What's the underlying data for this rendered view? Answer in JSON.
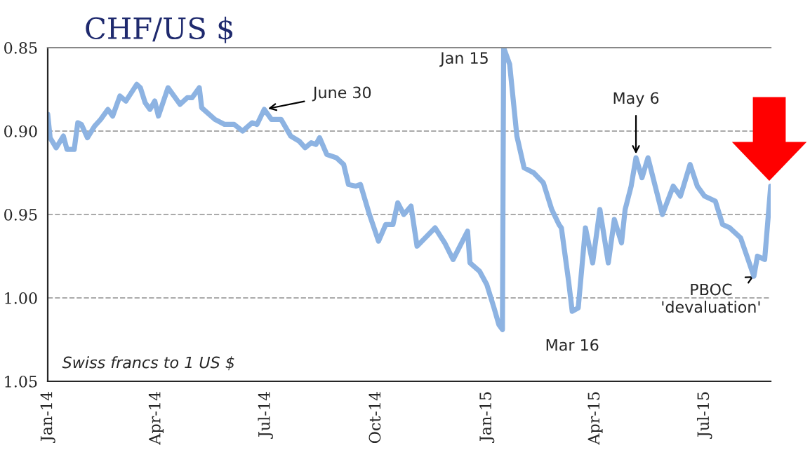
{
  "chart_data": {
    "type": "line",
    "title": "CHF/US $",
    "x": [
      "2014-01-01",
      "2014-01-03",
      "2014-01-08",
      "2014-01-14",
      "2014-01-17",
      "2014-01-23",
      "2014-01-26",
      "2014-01-29",
      "2014-02-03",
      "2014-02-09",
      "2014-02-14",
      "2014-02-20",
      "2014-02-24",
      "2014-03-02",
      "2014-03-07",
      "2014-03-16",
      "2014-03-19",
      "2014-03-23",
      "2014-03-27",
      "2014-03-31",
      "2014-04-03",
      "2014-04-11",
      "2014-04-17",
      "2014-04-21",
      "2014-04-27",
      "2014-05-01",
      "2014-05-07",
      "2014-05-09",
      "2014-05-20",
      "2014-05-28",
      "2014-06-05",
      "2014-06-12",
      "2014-06-20",
      "2014-06-24",
      "2014-06-30",
      "2014-07-06",
      "2014-07-14",
      "2014-07-22",
      "2014-07-29",
      "2014-08-03",
      "2014-08-08",
      "2014-08-12",
      "2014-08-15",
      "2014-08-21",
      "2014-08-29",
      "2014-09-04",
      "2014-09-08",
      "2014-09-14",
      "2014-09-18",
      "2014-09-25",
      "2014-10-03",
      "2014-10-09",
      "2014-10-15",
      "2014-10-19",
      "2014-10-24",
      "2014-10-30",
      "2014-11-04",
      "2014-11-19",
      "2014-11-27",
      "2014-12-04",
      "2014-12-16",
      "2014-12-18",
      "2014-12-26",
      "2015-01-01",
      "2015-01-07",
      "2015-01-11",
      "2015-01-14",
      "2015-01-15",
      "2015-01-20",
      "2015-01-26",
      "2015-02-01",
      "2015-02-09",
      "2015-02-17",
      "2015-02-24",
      "2015-03-02",
      "2015-03-04",
      "2015-03-10",
      "2015-03-13",
      "2015-03-18",
      "2015-03-24",
      "2015-03-30",
      "2015-04-05",
      "2015-04-12",
      "2015-04-17",
      "2015-04-23",
      "2015-04-26",
      "2015-05-01",
      "2015-05-05",
      "2015-05-10",
      "2015-05-15",
      "2015-05-21",
      "2015-05-27",
      "2015-06-05",
      "2015-06-11",
      "2015-06-19",
      "2015-06-25",
      "2015-07-01",
      "2015-07-10",
      "2015-07-16",
      "2015-07-22",
      "2015-07-31",
      "2015-08-11",
      "2015-08-14",
      "2015-08-20",
      "2015-08-25"
    ],
    "series": [
      {
        "color": "#8db3e2",
        "values": [
          0.89,
          0.904,
          0.91,
          0.903,
          0.911,
          0.911,
          0.895,
          0.896,
          0.904,
          0.897,
          0.893,
          0.887,
          0.891,
          0.879,
          0.882,
          0.872,
          0.874,
          0.883,
          0.887,
          0.882,
          0.891,
          0.874,
          0.88,
          0.884,
          0.88,
          0.88,
          0.874,
          0.886,
          0.893,
          0.896,
          0.896,
          0.9,
          0.895,
          0.896,
          0.887,
          0.893,
          0.893,
          0.903,
          0.906,
          0.91,
          0.907,
          0.908,
          0.904,
          0.914,
          0.916,
          0.92,
          0.932,
          0.933,
          0.932,
          0.949,
          0.966,
          0.956,
          0.956,
          0.943,
          0.95,
          0.945,
          0.969,
          0.958,
          0.967,
          0.977,
          0.96,
          0.979,
          0.984,
          0.992,
          1.006,
          1.016,
          1.019,
          0.85,
          0.86,
          0.903,
          0.922,
          0.925,
          0.931,
          0.947,
          0.956,
          0.958,
          0.99,
          1.008,
          1.006,
          0.958,
          0.979,
          0.947,
          0.979,
          0.953,
          0.967,
          0.947,
          0.933,
          0.916,
          0.928,
          0.916,
          0.933,
          0.95,
          0.933,
          0.939,
          0.92,
          0.933,
          0.939,
          0.942,
          0.956,
          0.958,
          0.964,
          0.987,
          0.975,
          0.977,
          0.933
        ]
      }
    ],
    "xlim": [
      "2014-01-01",
      "2015-08-25"
    ],
    "xticks": [
      {
        "value": "2014-01-01",
        "label": "Jan-14"
      },
      {
        "value": "2014-04-01",
        "label": "Apr-14"
      },
      {
        "value": "2014-07-01",
        "label": "Jul-14"
      },
      {
        "value": "2014-10-01",
        "label": "Oct-14"
      },
      {
        "value": "2015-01-01",
        "label": "Jan-15"
      },
      {
        "value": "2015-04-01",
        "label": "Apr-15"
      },
      {
        "value": "2015-07-01",
        "label": "Jul-15"
      }
    ],
    "ylim": [
      1.05,
      0.85
    ],
    "yticks": [
      {
        "value": 0.85,
        "label": "0.85"
      },
      {
        "value": 0.9,
        "label": "0.90"
      },
      {
        "value": 0.95,
        "label": "0.95"
      },
      {
        "value": 1.0,
        "label": "1.00"
      },
      {
        "value": 1.05,
        "label": "1.05"
      }
    ],
    "grid": "y",
    "legend": false,
    "annotations": [
      {
        "text": "June 30",
        "x": "2014-06-30",
        "y": 0.887
      },
      {
        "text": "Jan 15",
        "x": "2015-01-15",
        "y": 0.85
      },
      {
        "text": "May 6",
        "x": "2015-05-05",
        "y": 0.916
      },
      {
        "text": "Mar 16",
        "x": "2015-03-13",
        "y": 1.008
      },
      {
        "text": "PBOC\n'devaluation'",
        "x": "2015-08-11",
        "y": 0.987
      },
      "Swiss francs to 1 US $"
    ]
  }
}
